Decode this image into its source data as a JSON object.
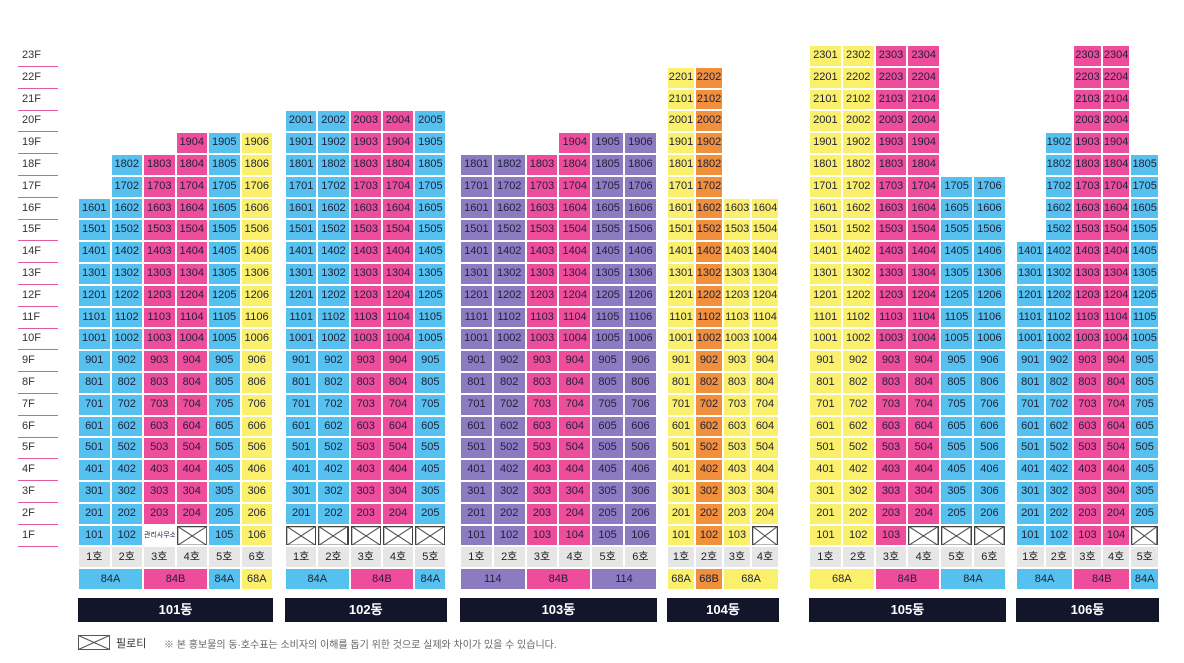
{
  "colors": {
    "blue": "#56c0ee",
    "pink": "#ee4d9b",
    "yellow": "#faf06c",
    "purple": "#8c7bc0",
    "orange": "#f08f3c",
    "hono_bg": "#e6e6e6",
    "label_bg": "#13152b"
  },
  "floor_labels": [
    "23F",
    "22F",
    "21F",
    "20F",
    "19F",
    "18F",
    "17F",
    "16F",
    "15F",
    "14F",
    "13F",
    "12F",
    "11F",
    "10F",
    "9F",
    "8F",
    "7F",
    "6F",
    "5F",
    "4F",
    "3F",
    "2F",
    "1F"
  ],
  "buildings": [
    {
      "name": "101동",
      "hono": [
        "1호",
        "2호",
        "3호",
        "4호",
        "5호",
        "6호"
      ],
      "lines": [
        {
          "top": 16,
          "color": "blue"
        },
        {
          "top": 18,
          "color": "blue"
        },
        {
          "top": 18,
          "color": "pink"
        },
        {
          "top": 19,
          "color": "pink"
        },
        {
          "top": 19,
          "color": "blue"
        },
        {
          "top": 19,
          "color": "yellow"
        }
      ],
      "first_floor": [
        "101",
        "102",
        "관리사무소",
        "X",
        "105",
        "106"
      ],
      "types": [
        {
          "label": "84A",
          "span": 2,
          "color": "blue"
        },
        {
          "label": "84B",
          "span": 2,
          "color": "pink"
        },
        {
          "label": "84A",
          "span": 1,
          "color": "blue"
        },
        {
          "label": "68A",
          "span": 1,
          "color": "yellow"
        }
      ]
    },
    {
      "name": "102동",
      "hono": [
        "1호",
        "2호",
        "3호",
        "4호",
        "5호"
      ],
      "lines": [
        {
          "top": 20,
          "color": "blue"
        },
        {
          "top": 20,
          "color": "blue"
        },
        {
          "top": 20,
          "color": "pink"
        },
        {
          "top": 20,
          "color": "pink"
        },
        {
          "top": 20,
          "color": "blue"
        }
      ],
      "first_floor": [
        "X",
        "X",
        "X",
        "X",
        "X"
      ],
      "types": [
        {
          "label": "84A",
          "span": 2,
          "color": "blue"
        },
        {
          "label": "84B",
          "span": 2,
          "color": "pink"
        },
        {
          "label": "84A",
          "span": 1,
          "color": "blue"
        }
      ]
    },
    {
      "name": "103동",
      "hono": [
        "1호",
        "2호",
        "3호",
        "4호",
        "5호",
        "6호"
      ],
      "lines": [
        {
          "top": 18,
          "color": "purple"
        },
        {
          "top": 18,
          "color": "purple"
        },
        {
          "top": 18,
          "color": "pink"
        },
        {
          "top": 19,
          "color": "pink"
        },
        {
          "top": 19,
          "color": "purple"
        },
        {
          "top": 19,
          "color": "purple"
        }
      ],
      "first_floor": [
        "101",
        "102",
        "103",
        "104",
        "105",
        "106"
      ],
      "types": [
        {
          "label": "114",
          "span": 2,
          "color": "purple"
        },
        {
          "label": "84B",
          "span": 2,
          "color": "pink"
        },
        {
          "label": "114",
          "span": 2,
          "color": "purple"
        }
      ]
    },
    {
      "name": "104동",
      "hono": [
        "1호",
        "2호",
        "3호",
        "4호"
      ],
      "lines": [
        {
          "top": 22,
          "color": "yellow"
        },
        {
          "top": 22,
          "color": "orange"
        },
        {
          "top": 16,
          "color": "yellow"
        },
        {
          "top": 16,
          "color": "yellow"
        }
      ],
      "first_floor": [
        "101",
        "102",
        "103",
        "X"
      ],
      "types": [
        {
          "label": "68A",
          "span": 1,
          "color": "yellow"
        },
        {
          "label": "68B",
          "span": 1,
          "color": "orange"
        },
        {
          "label": "68A",
          "span": 2,
          "color": "yellow"
        }
      ]
    },
    {
      "name": "105동",
      "hono": [
        "1호",
        "2호",
        "3호",
        "4호",
        "5호",
        "6호"
      ],
      "lines": [
        {
          "top": 23,
          "color": "yellow"
        },
        {
          "top": 23,
          "color": "yellow"
        },
        {
          "top": 23,
          "color": "pink"
        },
        {
          "top": 23,
          "color": "pink"
        },
        {
          "top": 17,
          "color": "blue"
        },
        {
          "top": 17,
          "color": "blue"
        }
      ],
      "first_floor": [
        "101",
        "102",
        "103",
        "X",
        "X",
        "X"
      ],
      "types": [
        {
          "label": "68A",
          "span": 2,
          "color": "yellow"
        },
        {
          "label": "84B",
          "span": 2,
          "color": "pink"
        },
        {
          "label": "84A",
          "span": 2,
          "color": "blue"
        }
      ]
    },
    {
      "name": "106동",
      "hono": [
        "1호",
        "2호",
        "3호",
        "4호",
        "5호"
      ],
      "lines": [
        {
          "top": 14,
          "color": "blue"
        },
        {
          "top": 19,
          "color": "blue"
        },
        {
          "top": 23,
          "color": "pink"
        },
        {
          "top": 23,
          "color": "pink"
        },
        {
          "top": 18,
          "color": "blue"
        }
      ],
      "first_floor": [
        "101",
        "102",
        "103",
        "104",
        "X"
      ],
      "types": [
        {
          "label": "84A",
          "span": 2,
          "color": "blue"
        },
        {
          "label": "84B",
          "span": 2,
          "color": "pink"
        },
        {
          "label": "84A",
          "span": 1,
          "color": "blue"
        }
      ]
    }
  ],
  "legend": {
    "label": "필로티",
    "note": "※ 본 홍보물의 동·호수표는 소비자의 이해를 돕기 위한 것으로 실제와 차이가 있을 수 있습니다."
  }
}
